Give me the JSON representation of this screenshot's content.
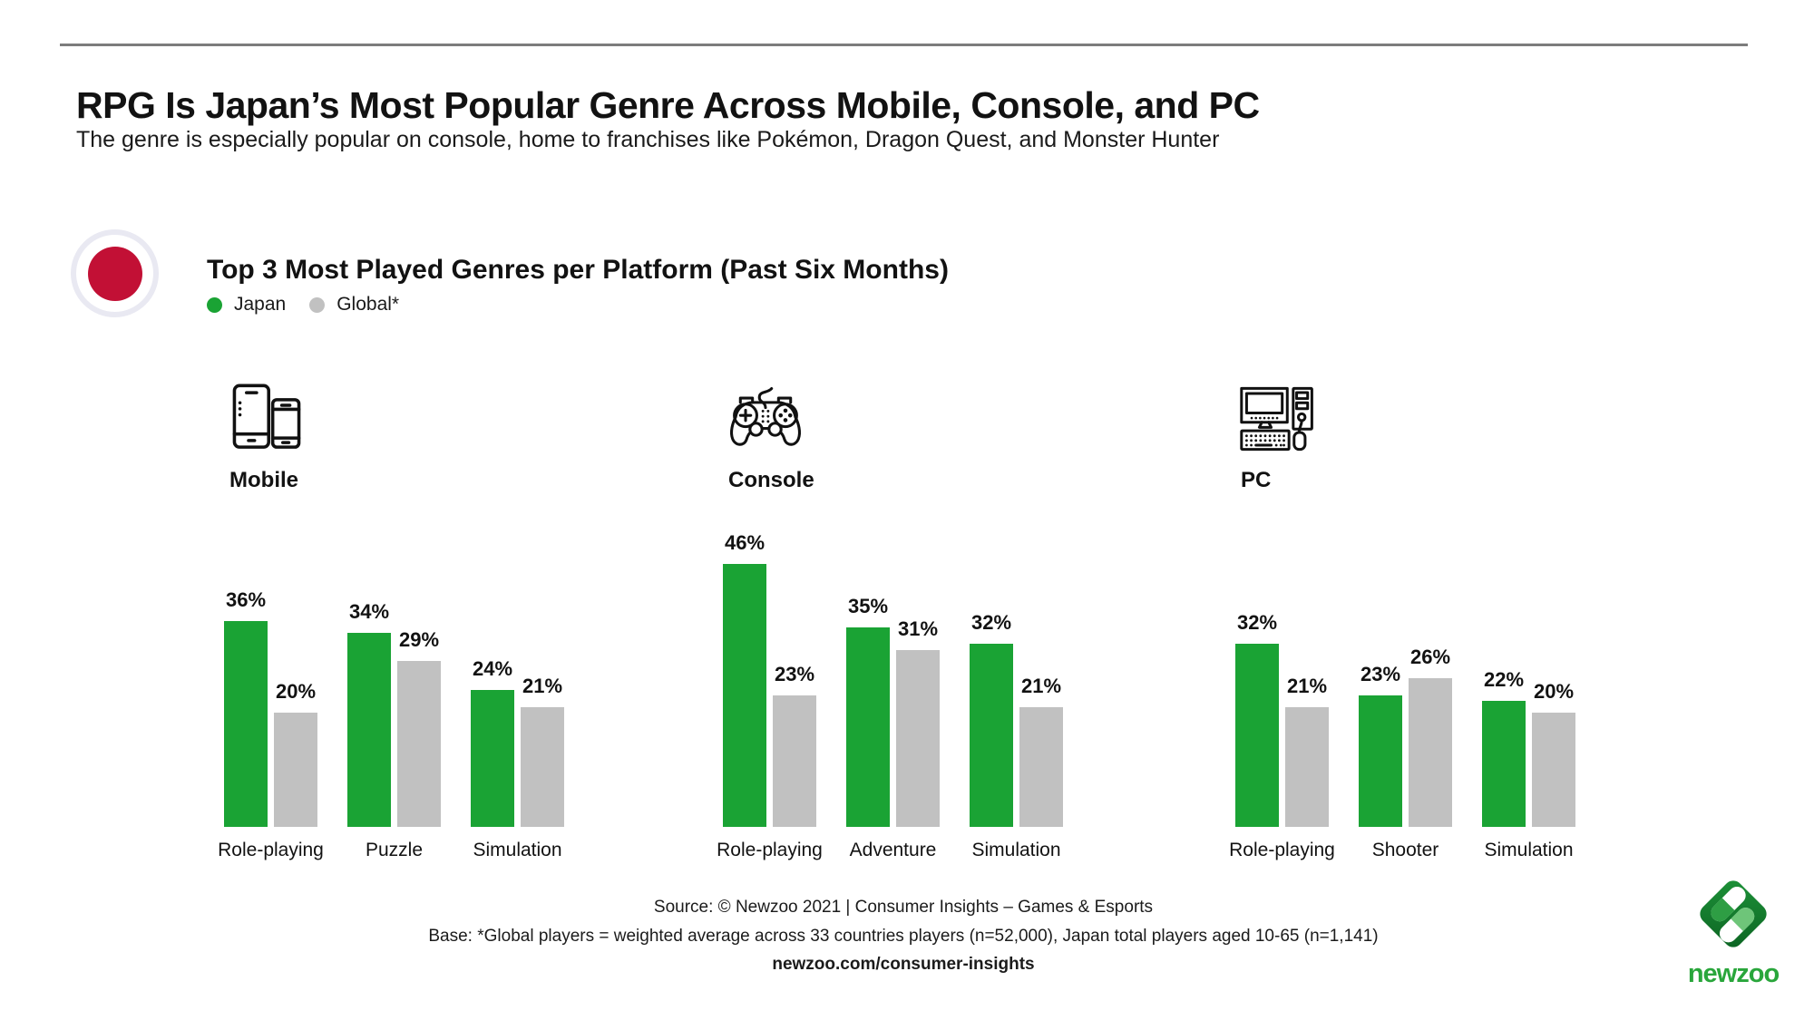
{
  "page": {
    "title": "RPG Is Japan’s Most Popular Genre Across Mobile, Console, and PC",
    "subtitle": "The genre is especially popular on console, home to franchises like Pokémon, Dragon Quest, and Monster Hunter"
  },
  "section": {
    "heading": "Top 3 Most Played Genres per Platform (Past Six Months)",
    "legend": [
      {
        "label": "Japan",
        "color": "#1aa334"
      },
      {
        "label": "Global*",
        "color": "#c1c1c1"
      }
    ]
  },
  "chart_data": {
    "type": "bar",
    "unit": "%",
    "ylim": [
      0,
      50
    ],
    "grid": false,
    "legend_position": "top-left",
    "series_names": [
      "Japan",
      "Global*"
    ],
    "platforms": [
      {
        "name": "Mobile",
        "icon": "mobile-devices-icon",
        "categories": [
          "Role-playing",
          "Puzzle",
          "Simulation"
        ],
        "series": [
          {
            "name": "Japan",
            "values": [
              36,
              34,
              24
            ]
          },
          {
            "name": "Global*",
            "values": [
              20,
              29,
              21
            ]
          }
        ]
      },
      {
        "name": "Console",
        "icon": "gamepad-icon",
        "categories": [
          "Role-playing",
          "Adventure",
          "Simulation"
        ],
        "series": [
          {
            "name": "Japan",
            "values": [
              46,
              35,
              32
            ]
          },
          {
            "name": "Global*",
            "values": [
              23,
              31,
              21
            ]
          }
        ]
      },
      {
        "name": "PC",
        "icon": "desktop-computer-icon",
        "categories": [
          "Role-playing",
          "Shooter",
          "Simulation"
        ],
        "series": [
          {
            "name": "Japan",
            "values": [
              32,
              23,
              22
            ]
          },
          {
            "name": "Global*",
            "values": [
              21,
              26,
              20
            ]
          }
        ]
      }
    ]
  },
  "footer": {
    "source_line": "Source: © Newzoo 2021 | Consumer Insights – Games & Esports",
    "base_line": "Base: *Global players = weighted average across 33 countries players (n=52,000),  Japan total players aged 10-65 (n=1,141)",
    "link": "newzoo.com/consumer-insights",
    "logo_text": "newzoo"
  },
  "colors": {
    "japan_green": "#1aa334",
    "global_gray": "#c1c1c1",
    "flag_red": "#c21035",
    "flag_ring": "#e9e9f2",
    "rule_gray": "#7c7c7c",
    "logo_dark_green": "#15772c",
    "logo_mid_green": "#2e9e44",
    "logo_light_green": "#6ec579",
    "logo_wordmark_green": "#29a63b"
  }
}
